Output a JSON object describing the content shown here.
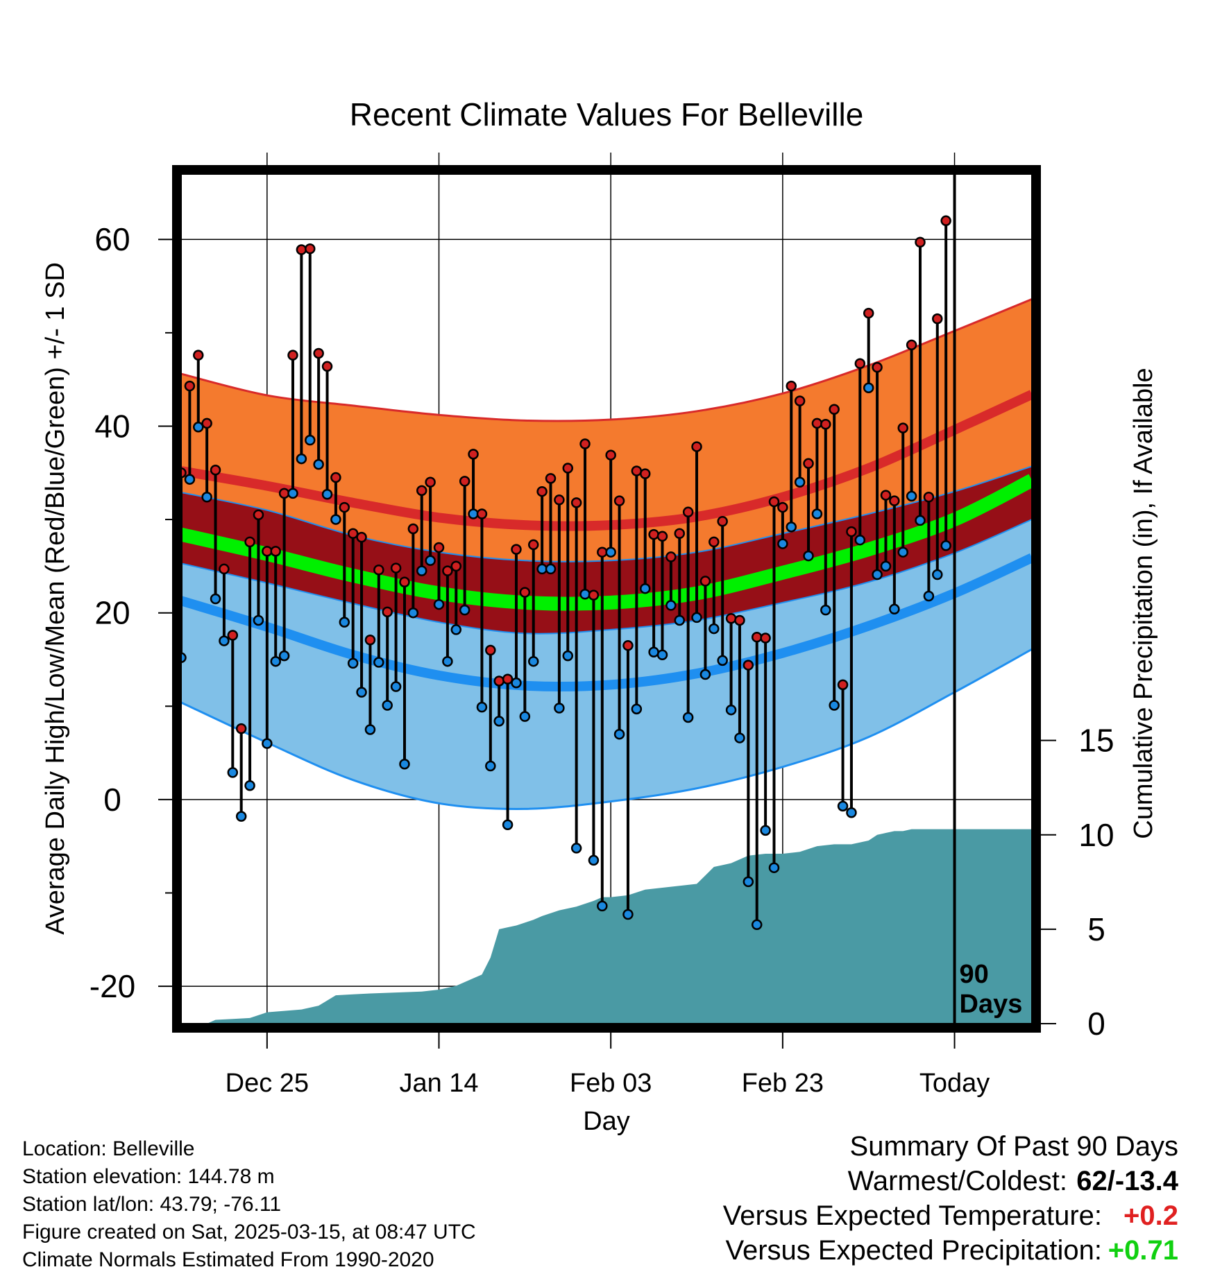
{
  "colors": {
    "high_band": "#f47a2e",
    "high_line": "#d82a2a",
    "mean_band": "#960f17",
    "mean_line": "#00f000",
    "low_band": "#80c0e8",
    "low_line": "#1f8ff0",
    "precip": "#4a9aa4",
    "high_dot": "#d02020",
    "low_dot": "#1a88e0",
    "warm_text": "#e02020",
    "precip_text": "#10d010"
  },
  "chart_data": {
    "type": "line",
    "title": "Recent Climate Values For Belleville",
    "xlabel": "Day",
    "ylabel": "Average Daily High/Low/Mean (Red/Blue/Green) +/- 1 SD",
    "y2label": "Cumulative Precipitation (in), If Available",
    "y_range": [
      -24,
      67
    ],
    "y_ticks": [
      -20,
      0,
      20,
      40,
      60
    ],
    "y2_range": [
      0,
      45
    ],
    "y2_ticks": [
      0,
      5,
      10,
      15
    ],
    "x_range": [
      -90,
      9
    ],
    "x_ticks": [
      {
        "day": -80,
        "label": "Dec 25"
      },
      {
        "day": -60,
        "label": "Jan 14"
      },
      {
        "day": -40,
        "label": "Feb 03"
      },
      {
        "day": -20,
        "label": "Feb 23"
      },
      {
        "day": 0,
        "label": "Today"
      }
    ],
    "today_marker": {
      "day": 0,
      "label_line1": "90",
      "label_line2": "Days"
    },
    "normals_days": [
      -90,
      -80,
      -70,
      -60,
      -50,
      -40,
      -30,
      -20,
      -10,
      0,
      9
    ],
    "normal_high_upper": [
      45.6,
      43.3,
      42.2,
      41.2,
      40.6,
      40.7,
      41.6,
      43.5,
      46.5,
      50.2,
      53.6
    ],
    "normal_high": [
      35.2,
      33.6,
      31.8,
      30.2,
      29.4,
      29.4,
      30.3,
      32.4,
      35.5,
      39.6,
      43.4
    ],
    "normal_mean_upper": [
      32.9,
      31.0,
      28.3,
      26.5,
      25.6,
      25.6,
      26.5,
      28.5,
      30.6,
      33.0,
      35.7
    ],
    "normal_mean": [
      28.4,
      26.3,
      24.0,
      22.1,
      21.1,
      21.1,
      22.1,
      24.3,
      26.8,
      30.0,
      34.2
    ],
    "normal_mean_lower": [
      25.3,
      23.2,
      21.0,
      19.0,
      17.8,
      18.2,
      19.2,
      21.1,
      23.3,
      26.4,
      30.0
    ],
    "normal_low": [
      21.3,
      18.5,
      15.5,
      13.3,
      12.2,
      12.3,
      13.5,
      15.7,
      18.6,
      22.1,
      25.9
    ],
    "normal_low_lower": [
      10.4,
      6.1,
      2.1,
      -0.4,
      -1.0,
      -0.2,
      1.2,
      3.5,
      6.7,
      11.5,
      16.1
    ],
    "obs_days": [
      -90,
      -89,
      -88,
      -87,
      -86,
      -85,
      -84,
      -83,
      -82,
      -81,
      -80,
      -79,
      -78,
      -77,
      -76,
      -75,
      -74,
      -73,
      -72,
      -71,
      -70,
      -69,
      -68,
      -67,
      -66,
      -65,
      -64,
      -63,
      -62,
      -61,
      -60,
      -59,
      -58,
      -57,
      -56,
      -55,
      -54,
      -53,
      -52,
      -51,
      -50,
      -49,
      -48,
      -47,
      -46,
      -45,
      -44,
      -43,
      -42,
      -41,
      -40,
      -39,
      -38,
      -37,
      -36,
      -35,
      -34,
      -33,
      -32,
      -31,
      -30,
      -29,
      -28,
      -27,
      -26,
      -25,
      -24,
      -23,
      -22,
      -21,
      -20,
      -19,
      -18,
      -17,
      -16,
      -15,
      -14,
      -13,
      -12,
      -11,
      -10,
      -9,
      -8,
      -7,
      -6,
      -5,
      -4,
      -3,
      -2,
      -1
    ],
    "obs_high": [
      35.0,
      44.3,
      47.6,
      40.3,
      35.3,
      24.7,
      17.6,
      7.6,
      27.6,
      30.5,
      26.6,
      26.6,
      32.8,
      47.6,
      58.9,
      59.0,
      47.8,
      46.4,
      34.5,
      31.3,
      28.5,
      28.1,
      17.1,
      24.6,
      20.1,
      24.8,
      23.3,
      29.0,
      33.1,
      34.0,
      27.0,
      24.5,
      25.0,
      34.1,
      37.0,
      30.6,
      16.0,
      12.7,
      12.9,
      26.8,
      22.2,
      27.3,
      33.0,
      34.4,
      32.1,
      35.5,
      31.8,
      38.1,
      21.9,
      26.5,
      36.9,
      32.0,
      16.5,
      35.2,
      34.9,
      28.4,
      28.2,
      26.0,
      28.5,
      30.8,
      37.8,
      23.4,
      27.6,
      29.8,
      19.4,
      19.2,
      14.4,
      17.4,
      17.3,
      31.9,
      31.3,
      44.3,
      42.7,
      36.0,
      40.3,
      40.2,
      41.8,
      12.3,
      28.7,
      46.7,
      52.1,
      46.3,
      32.6,
      32.0,
      39.8,
      48.7,
      59.7,
      32.4,
      51.5,
      62.0
    ],
    "obs_low": [
      15.2,
      34.3,
      39.9,
      32.4,
      21.5,
      17.0,
      2.9,
      -1.8,
      1.5,
      19.2,
      6.0,
      14.8,
      15.4,
      32.8,
      36.5,
      38.5,
      35.9,
      32.7,
      30.0,
      19.0,
      14.6,
      11.5,
      7.5,
      14.7,
      10.1,
      12.1,
      3.8,
      20.0,
      24.5,
      25.6,
      20.9,
      14.8,
      18.2,
      20.3,
      30.6,
      9.9,
      3.6,
      8.4,
      -2.7,
      12.5,
      8.9,
      14.8,
      24.7,
      24.7,
      9.8,
      15.4,
      -5.2,
      22.0,
      -6.5,
      -11.4,
      26.5,
      7.0,
      -12.3,
      9.7,
      22.6,
      15.8,
      15.5,
      20.8,
      19.2,
      8.8,
      19.5,
      13.4,
      18.3,
      14.9,
      9.6,
      6.6,
      -8.8,
      -13.4,
      -3.3,
      -7.3,
      27.4,
      29.2,
      34.0,
      26.1,
      30.6,
      20.3,
      10.1,
      -0.7,
      -1.4,
      27.8,
      44.1,
      24.1,
      25.0,
      20.4,
      26.5,
      32.5,
      29.9,
      21.8,
      24.1,
      27.2
    ],
    "precip_days": [
      -90,
      -87,
      -86,
      -84,
      -82,
      -80,
      -76,
      -74,
      -72,
      -70,
      -68,
      -62,
      -60,
      -58,
      -56,
      -55,
      -54,
      -53,
      -52,
      -51,
      -50,
      -49,
      -48,
      -46,
      -44,
      -42,
      -41,
      -40,
      -38,
      -36,
      -34,
      -32,
      -30,
      -28,
      -27,
      -26,
      -24,
      -22,
      -20,
      -18,
      -16,
      -14,
      -12,
      -10,
      -9,
      -8,
      -7,
      -6,
      -5,
      0,
      9
    ],
    "precip_cum": [
      0.0,
      0.0,
      0.2,
      0.25,
      0.3,
      0.6,
      0.75,
      0.95,
      1.5,
      1.55,
      1.6,
      1.7,
      1.8,
      2.0,
      2.4,
      2.6,
      3.5,
      5.0,
      5.1,
      5.2,
      5.35,
      5.5,
      5.7,
      6.0,
      6.2,
      6.5,
      6.7,
      6.7,
      6.8,
      7.1,
      7.2,
      7.3,
      7.4,
      8.3,
      8.4,
      8.5,
      8.9,
      9.0,
      9.0,
      9.1,
      9.4,
      9.5,
      9.5,
      9.7,
      10.0,
      10.1,
      10.2,
      10.2,
      10.3,
      10.3,
      10.3
    ]
  },
  "footer": {
    "location": "Location: Belleville",
    "elevation": "Station elevation: 144.78 m",
    "latlon": "Station lat/lon: 43.79; -76.11",
    "created": "Figure created on Sat, 2025-03-15, at 08:47 UTC",
    "normals": "Climate Normals Estimated From 1990-2020"
  },
  "summary": {
    "title": "Summary Of Past 90 Days",
    "warmest_label": "Warmest/Coldest:",
    "warmest_value": "62/-13.4",
    "temp_label": "Versus Expected Temperature:",
    "temp_value": "+0.2",
    "precip_label": "Versus Expected Precipitation:",
    "precip_value": "+0.71"
  }
}
